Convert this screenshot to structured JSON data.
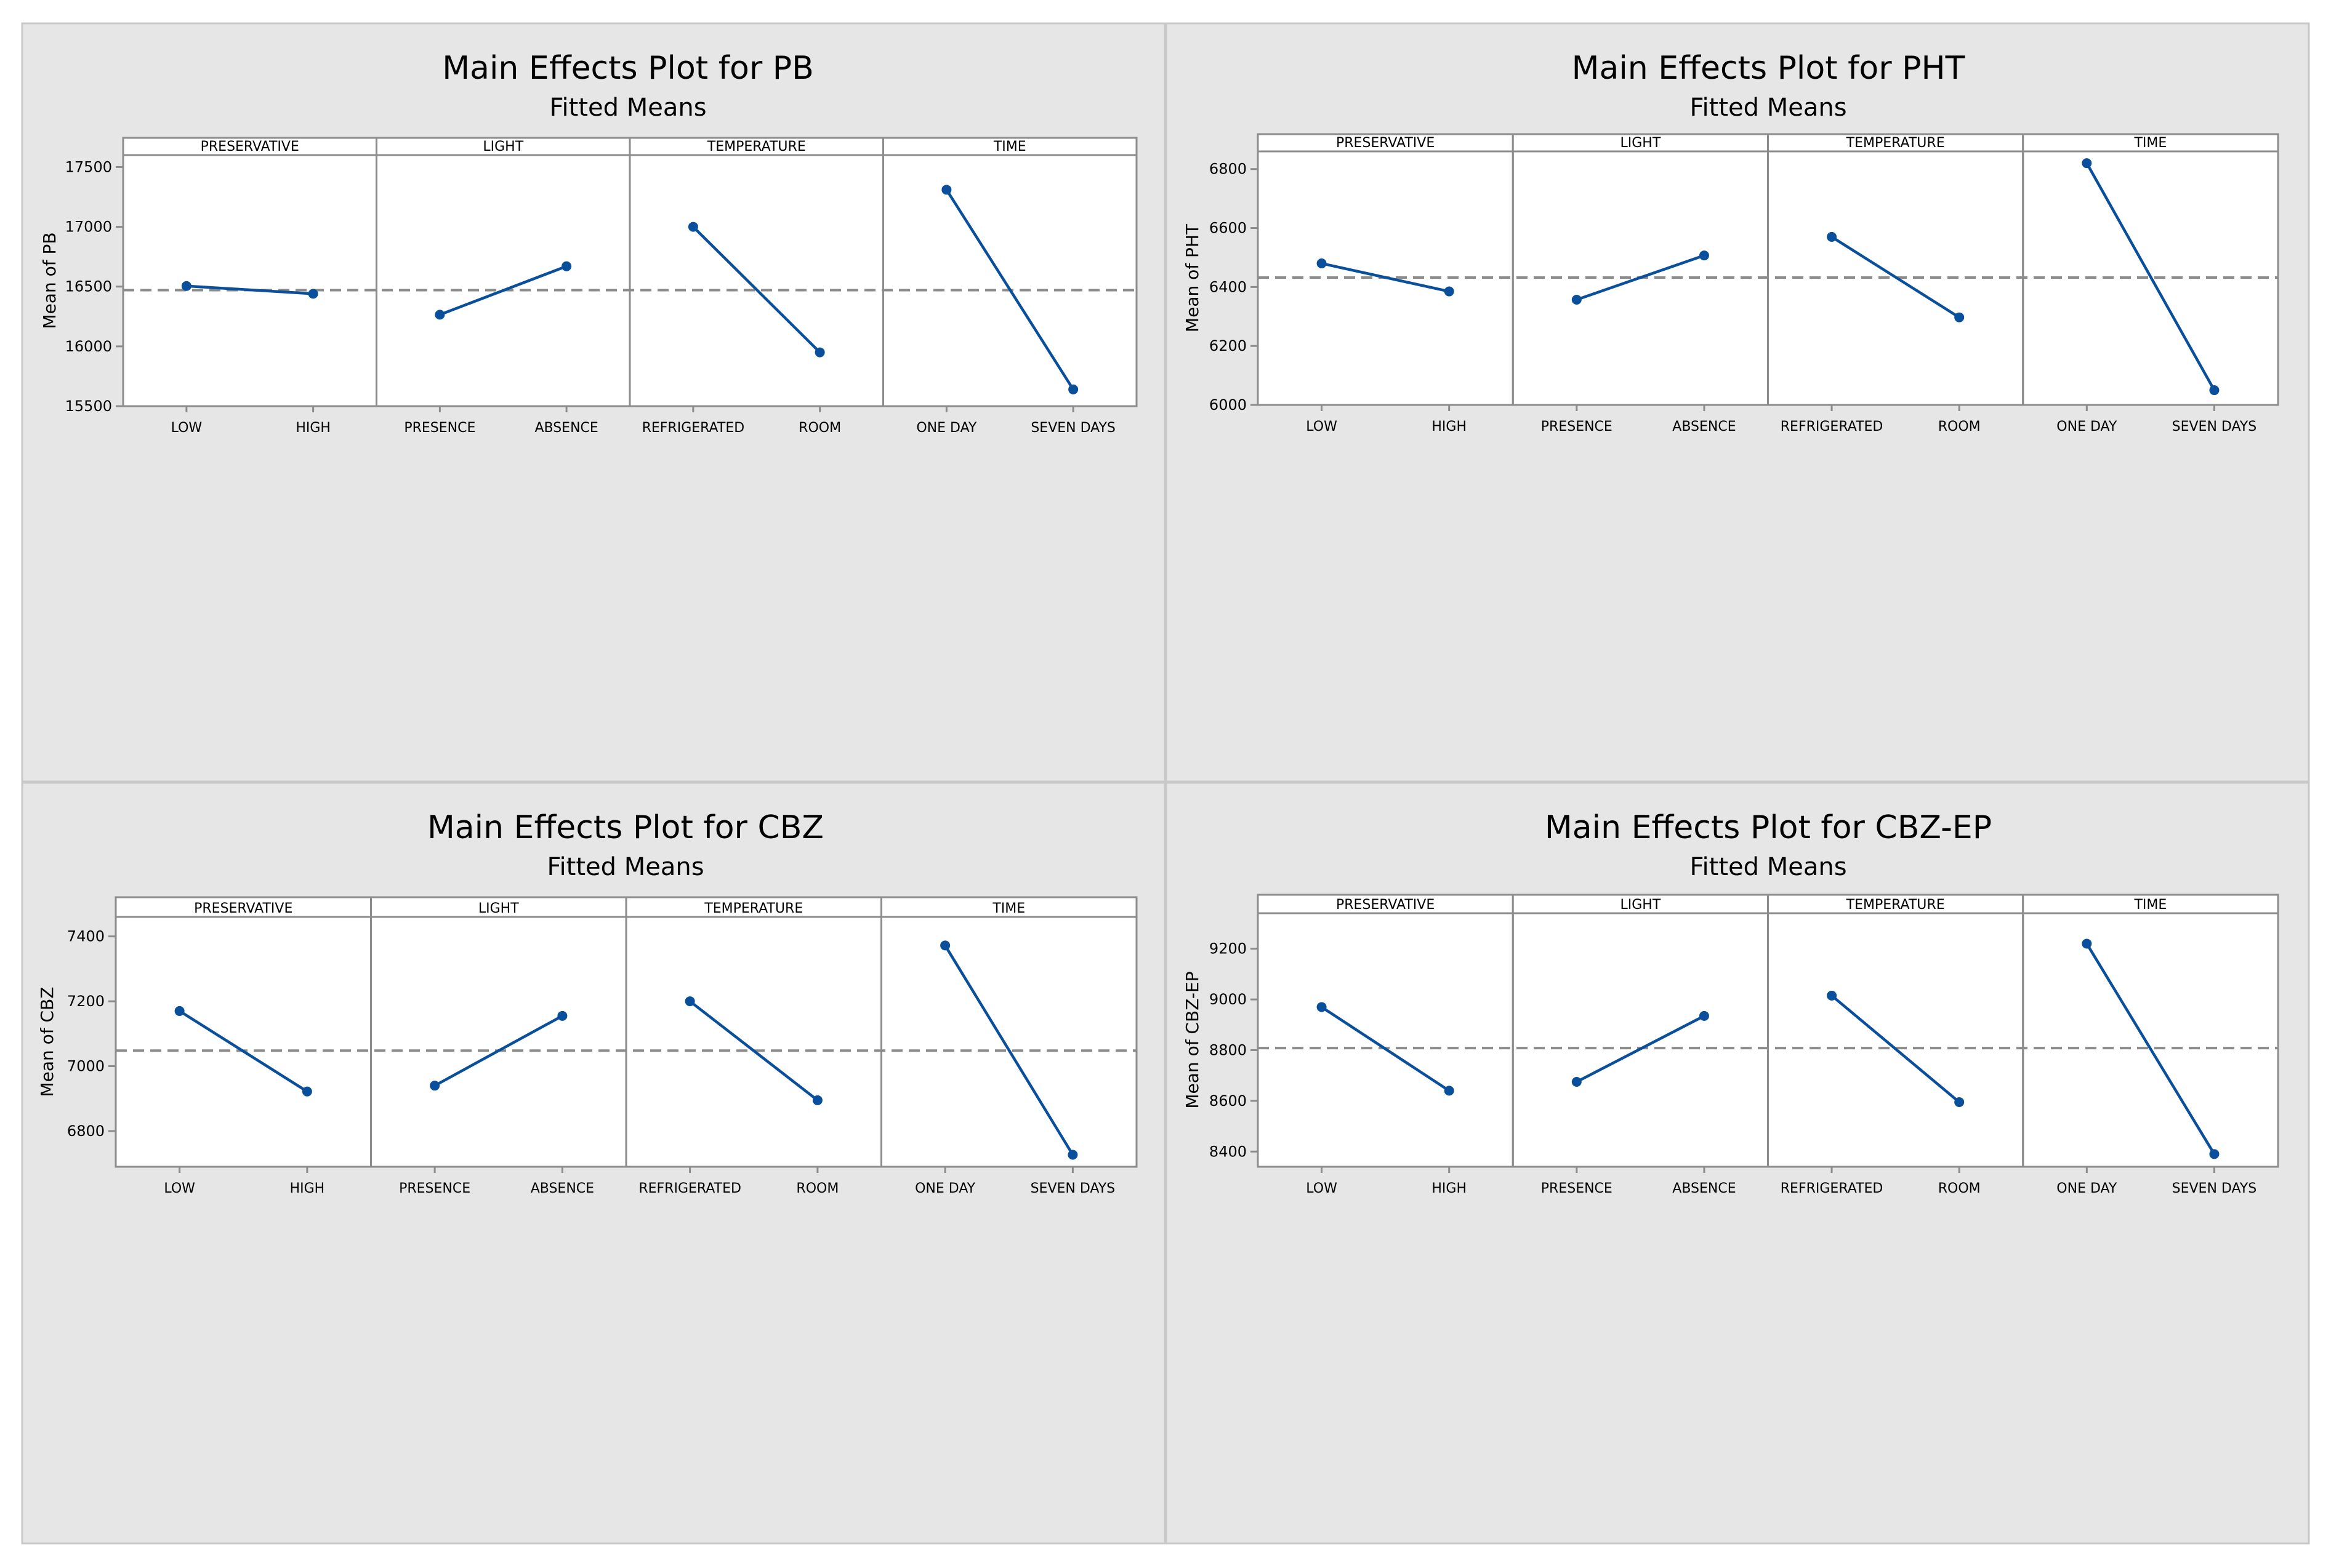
{
  "colors": {
    "panel_background": "#e6e6e6",
    "panel_border": "#c8c8c8",
    "plot_background": "#ffffff",
    "frame": "#8c8c8c",
    "series_line": "#0a4f9c",
    "series_marker": "#0a4f9c",
    "reference_line": "#8c8c8c",
    "text": "#000000"
  },
  "chart_data": [
    {
      "type": "line",
      "title": "Main Effects Plot for PB",
      "subtitle": "Fitted Means",
      "ylabel": "Mean of PB",
      "ylim": [
        15500,
        17600
      ],
      "yticks": [
        15500,
        16000,
        16500,
        17000,
        17500
      ],
      "reference_line": 16470,
      "grid": false,
      "facets": [
        {
          "name": "PRESERVATIVE",
          "categories": [
            "LOW",
            "HIGH"
          ],
          "values": [
            16505,
            16440
          ]
        },
        {
          "name": "LIGHT",
          "categories": [
            "PRESENCE",
            "ABSENCE"
          ],
          "values": [
            16265,
            16670
          ]
        },
        {
          "name": "TEMPERATURE",
          "categories": [
            "REFRIGERATED",
            "ROOM"
          ],
          "values": [
            17000,
            15950
          ]
        },
        {
          "name": "TIME",
          "categories": [
            "ONE DAY",
            "SEVEN DAYS"
          ],
          "values": [
            17310,
            15640
          ]
        }
      ]
    },
    {
      "type": "line",
      "title": "Main Effects Plot for PHT",
      "subtitle": "Fitted Means",
      "ylabel": "Mean of PHT",
      "ylim": [
        6000,
        6860
      ],
      "yticks": [
        6000,
        6200,
        6400,
        6600,
        6800
      ],
      "reference_line": 6432,
      "grid": false,
      "facets": [
        {
          "name": "PRESERVATIVE",
          "categories": [
            "LOW",
            "HIGH"
          ],
          "values": [
            6480,
            6385
          ]
        },
        {
          "name": "LIGHT",
          "categories": [
            "PRESENCE",
            "ABSENCE"
          ],
          "values": [
            6357,
            6507
          ]
        },
        {
          "name": "TEMPERATURE",
          "categories": [
            "REFRIGERATED",
            "ROOM"
          ],
          "values": [
            6570,
            6297
          ]
        },
        {
          "name": "TIME",
          "categories": [
            "ONE DAY",
            "SEVEN DAYS"
          ],
          "values": [
            6820,
            6050
          ]
        }
      ]
    },
    {
      "type": "line",
      "title": "Main Effects Plot for CBZ",
      "subtitle": "Fitted Means",
      "ylabel": "Mean of CBZ",
      "ylim": [
        6690,
        7460
      ],
      "yticks": [
        6800,
        7000,
        7200,
        7400
      ],
      "reference_line": 7048,
      "grid": false,
      "facets": [
        {
          "name": "PRESERVATIVE",
          "categories": [
            "LOW",
            "HIGH"
          ],
          "values": [
            7170,
            6922
          ]
        },
        {
          "name": "LIGHT",
          "categories": [
            "PRESENCE",
            "ABSENCE"
          ],
          "values": [
            6940,
            7155
          ]
        },
        {
          "name": "TEMPERATURE",
          "categories": [
            "REFRIGERATED",
            "ROOM"
          ],
          "values": [
            7200,
            6895
          ]
        },
        {
          "name": "TIME",
          "categories": [
            "ONE DAY",
            "SEVEN DAYS"
          ],
          "values": [
            7372,
            6727
          ]
        }
      ]
    },
    {
      "type": "line",
      "title": "Main Effects Plot for CBZ-EP",
      "subtitle": "Fitted Means",
      "ylabel": "Mean of CBZ-EP",
      "ylim": [
        8340,
        9340
      ],
      "yticks": [
        8400,
        8600,
        8800,
        9000,
        9200
      ],
      "reference_line": 8808,
      "grid": false,
      "facets": [
        {
          "name": "PRESERVATIVE",
          "categories": [
            "LOW",
            "HIGH"
          ],
          "values": [
            8970,
            8640
          ]
        },
        {
          "name": "LIGHT",
          "categories": [
            "PRESENCE",
            "ABSENCE"
          ],
          "values": [
            8675,
            8935
          ]
        },
        {
          "name": "TEMPERATURE",
          "categories": [
            "REFRIGERATED",
            "ROOM"
          ],
          "values": [
            9015,
            8595
          ]
        },
        {
          "name": "TIME",
          "categories": [
            "ONE DAY",
            "SEVEN DAYS"
          ],
          "values": [
            9220,
            8390
          ]
        }
      ]
    }
  ]
}
